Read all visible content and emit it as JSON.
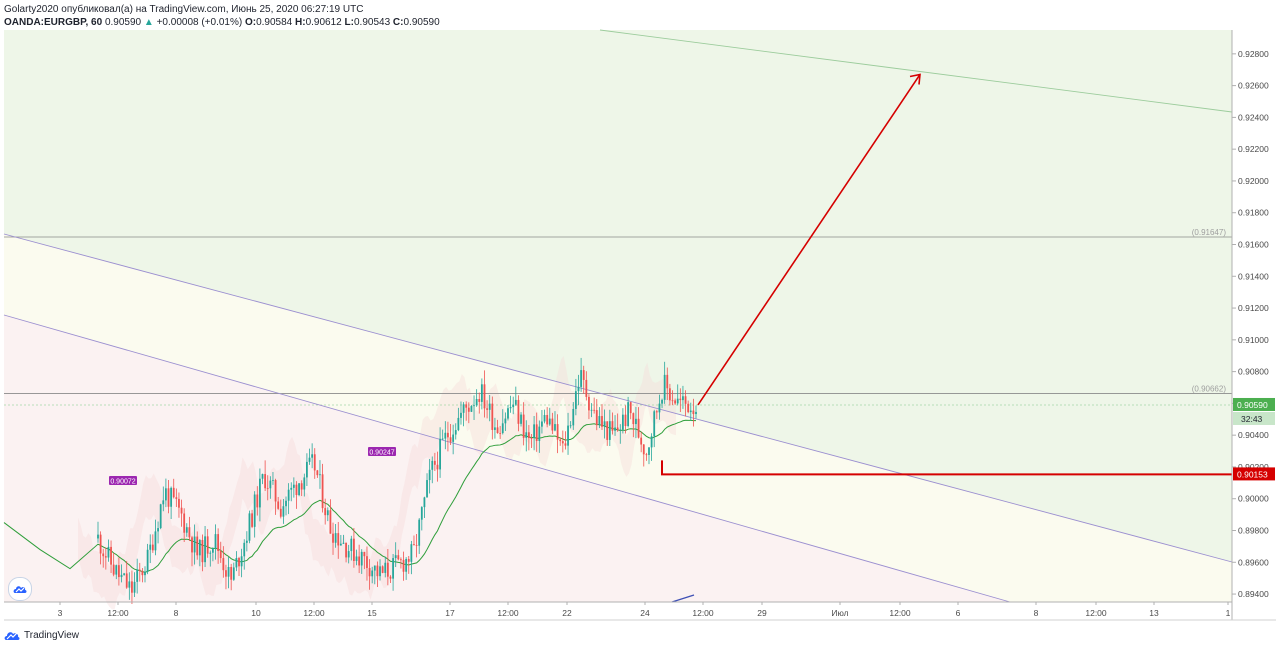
{
  "header": {
    "line1": "Golarty2020 опубликовал(а) на TradingView.com, Июнь 25, 2020 06:27:19 UTC",
    "symbol": "OANDA:EURGBP, 60",
    "last": "0.90590",
    "change": "+0.00008 (+0.01%)",
    "o_label": "O:",
    "o_value": "0.90584",
    "h_label": "H:",
    "h_value": "0.90612",
    "l_label": "L:",
    "l_value": "0.90543",
    "c_label": "C:",
    "c_value": "0.90590"
  },
  "footer": {
    "brand": "TradingView"
  },
  "colors": {
    "up_candle": "#26a69a",
    "down_candle": "#ef5350",
    "ma_line": "#2e9e3a",
    "arrow": "#d50000",
    "support": "#d50000",
    "channel_line": "#9b8fd0",
    "price_badge": "#4caf50",
    "upper_zone": "#eef6e8",
    "middle_zone": "#fbfbef",
    "lower_zone": "#fbf2f2",
    "marker": "#9c27b0"
  },
  "chart_data": {
    "type": "candlestick",
    "symbol": "OANDA:EURGBP",
    "interval": "60",
    "ylim": [
      0.8935,
      0.9295
    ],
    "y_ticks": [
      "0.92800",
      "0.92600",
      "0.92400",
      "0.92200",
      "0.92000",
      "0.91800",
      "0.91600",
      "0.91400",
      "0.91200",
      "0.91000",
      "0.90800",
      "0.90600",
      "0.90400",
      "0.90200",
      "0.90000",
      "0.89800",
      "0.89600",
      "0.89400"
    ],
    "x_ticks": [
      "3",
      "12:00",
      "8",
      "10",
      "12:00",
      "15",
      "17",
      "12:00",
      "22",
      "24",
      "12:00",
      "29",
      "Июл",
      "12:00",
      "6",
      "8",
      "12:00",
      "13",
      "1"
    ],
    "current_price": "0.90590",
    "countdown": "32:43",
    "levels": [
      {
        "label": "(0.91647)",
        "value": 0.91647
      },
      {
        "label": "(0.90662)",
        "value": 0.90662
      }
    ],
    "support": {
      "label": "0.90153",
      "value": 0.90153
    },
    "peak_markers": [
      "0.90072",
      "0.90247"
    ],
    "projection_target": 0.9267,
    "approx_path": [
      0.8975,
      0.8955,
      0.8942,
      0.8962,
      0.9005,
      0.899,
      0.8965,
      0.8975,
      0.8948,
      0.898,
      0.9015,
      0.8995,
      0.901,
      0.9022,
      0.8982,
      0.897,
      0.8962,
      0.8952,
      0.8958,
      0.8965,
      0.9015,
      0.904,
      0.9055,
      0.9068,
      0.9045,
      0.906,
      0.9035,
      0.9052,
      0.903,
      0.9078,
      0.905,
      0.904,
      0.9055,
      0.903,
      0.9072,
      0.906,
      0.9059
    ]
  }
}
